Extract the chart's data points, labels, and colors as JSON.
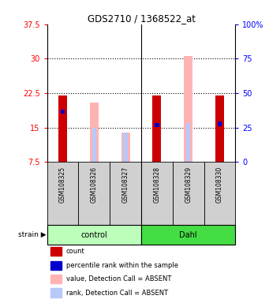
{
  "title": "GDS2710 / 1368522_at",
  "samples": [
    "GSM108325",
    "GSM108326",
    "GSM108327",
    "GSM108328",
    "GSM108329",
    "GSM108330"
  ],
  "ylim_left": [
    7.5,
    37.5
  ],
  "ylim_right": [
    0,
    100
  ],
  "yticks_left": [
    7.5,
    15.0,
    22.5,
    30.0,
    37.5
  ],
  "yticks_right": [
    0,
    25,
    50,
    75,
    100
  ],
  "ytick_labels_left": [
    "7.5",
    "15",
    "22.5",
    "30",
    "37.5"
  ],
  "ytick_labels_right": [
    "0",
    "25",
    "50",
    "75",
    "100%"
  ],
  "red_bars": [
    22.0,
    0.0,
    0.0,
    22.0,
    0.0,
    22.0
  ],
  "blue_bars": [
    18.5,
    0.0,
    0.0,
    15.5,
    0.0,
    15.8
  ],
  "pink_bars": [
    0.0,
    20.5,
    14.0,
    0.0,
    30.5,
    0.0
  ],
  "lightblue_bars": [
    0.0,
    15.0,
    14.0,
    0.0,
    16.0,
    0.0
  ],
  "red_color": "#cc0000",
  "blue_color": "#0000cc",
  "pink_color": "#ffb3b3",
  "lightblue_color": "#b8c8f8",
  "bar_bottom": 7.5,
  "legend_items": [
    {
      "color": "#cc0000",
      "label": "count"
    },
    {
      "color": "#0000cc",
      "label": "percentile rank within the sample"
    },
    {
      "color": "#ffb3b3",
      "label": "value, Detection Call = ABSENT"
    },
    {
      "color": "#b8c8f8",
      "label": "rank, Detection Call = ABSENT"
    }
  ]
}
